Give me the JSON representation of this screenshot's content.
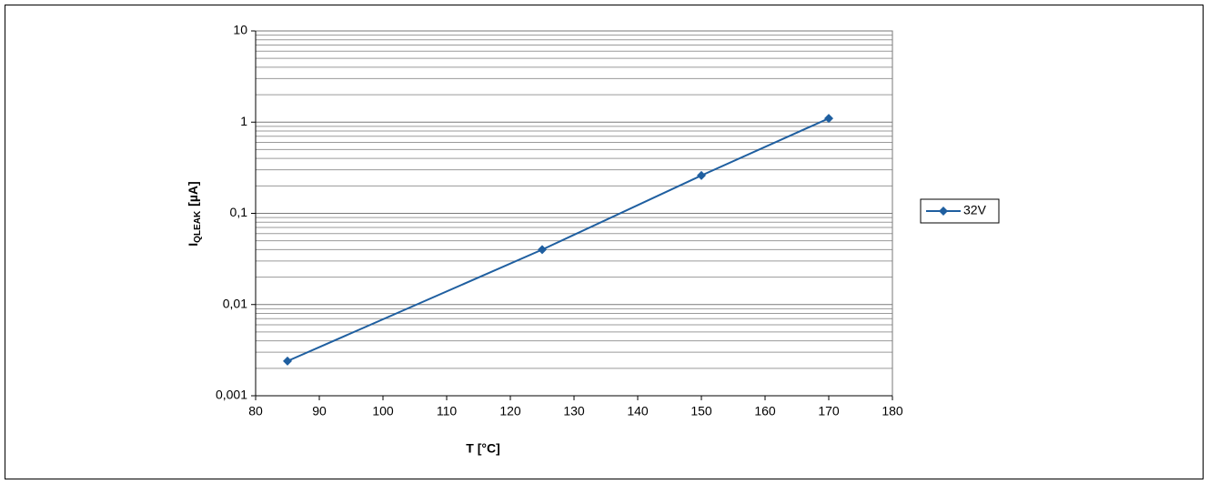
{
  "chart_data": {
    "type": "line",
    "ylabel": [
      "I",
      "QLEAK",
      "[µA]"
    ],
    "xlabel": "T [°C]",
    "x": [
      85,
      125,
      150,
      170
    ],
    "series": [
      {
        "name": "32V",
        "color": "#1f5fa0",
        "values": [
          0.0024,
          0.04,
          0.26,
          1.1
        ]
      }
    ],
    "xlim": [
      80,
      180
    ],
    "xticks": [
      80,
      90,
      100,
      110,
      120,
      130,
      140,
      150,
      160,
      170,
      180
    ],
    "ylim": [
      0.001,
      10
    ],
    "yticks": [
      {
        "value": 0.001,
        "label": "0,001"
      },
      {
        "value": 0.01,
        "label": "0,01"
      },
      {
        "value": 0.1,
        "label": "0,1"
      },
      1,
      10
    ],
    "ylog": true,
    "grid": true,
    "legend": "right"
  }
}
